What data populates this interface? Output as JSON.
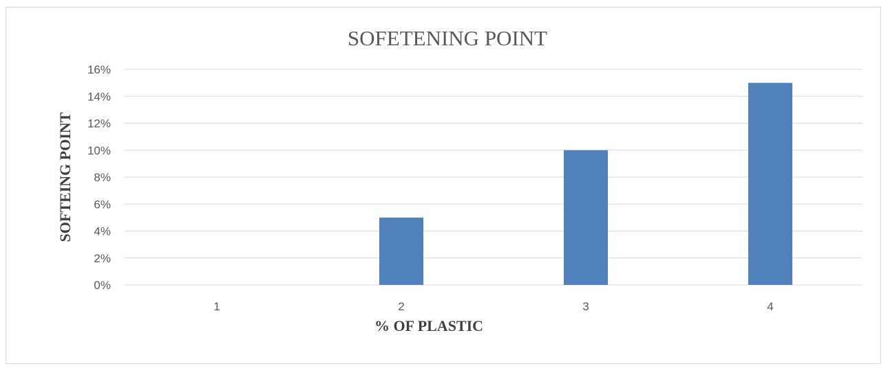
{
  "chart_data": {
    "type": "bar",
    "title": "SOFETENING POINT",
    "xlabel": "% OF PLASTIC",
    "ylabel": "SOFTEING POINT",
    "categories": [
      "1",
      "2",
      "3",
      "4"
    ],
    "values": [
      0,
      5,
      10,
      15
    ],
    "yticks": [
      "0%",
      "2%",
      "4%",
      "6%",
      "8%",
      "10%",
      "12%",
      "14%",
      "16%"
    ],
    "ylim": [
      0,
      16
    ],
    "y_unit": "%",
    "grid": true,
    "legend": "none",
    "bar_color": "#4f81bd"
  }
}
